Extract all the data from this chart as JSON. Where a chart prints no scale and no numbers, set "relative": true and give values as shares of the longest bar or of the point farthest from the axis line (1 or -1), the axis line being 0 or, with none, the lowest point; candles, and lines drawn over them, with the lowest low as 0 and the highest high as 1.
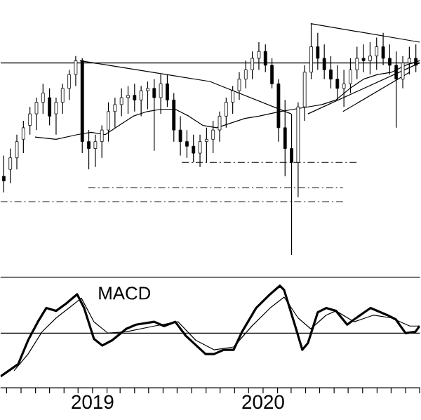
{
  "chart_data": [
    {
      "type": "candlestick",
      "relative": true,
      "color": "#000000",
      "xlim": [
        "2018-06-18",
        "2020-12-02"
      ],
      "tick_labels": false,
      "x": [
        "2018-06-25",
        "2018-07-09",
        "2018-07-23",
        "2018-08-06",
        "2018-08-20",
        "2018-09-03",
        "2018-09-17",
        "2018-10-01",
        "2018-10-15",
        "2018-10-29",
        "2018-11-12",
        "2018-11-26",
        "2018-12-10",
        "2018-12-24",
        "2019-01-07",
        "2019-01-21",
        "2019-02-04",
        "2019-02-18",
        "2019-03-04",
        "2019-03-18",
        "2019-04-01",
        "2019-04-15",
        "2019-04-29",
        "2019-05-13",
        "2019-05-27",
        "2019-06-10",
        "2019-06-24",
        "2019-07-08",
        "2019-07-22",
        "2019-08-05",
        "2019-08-19",
        "2019-09-02",
        "2019-09-16",
        "2019-09-30",
        "2019-10-14",
        "2019-10-28",
        "2019-11-11",
        "2019-11-25",
        "2019-12-09",
        "2019-12-23",
        "2020-01-06",
        "2020-01-20",
        "2020-02-03",
        "2020-02-17",
        "2020-03-02",
        "2020-03-16",
        "2020-03-30",
        "2020-04-13",
        "2020-04-27",
        "2020-05-11",
        "2020-05-25",
        "2020-06-08",
        "2020-06-22",
        "2020-07-06",
        "2020-07-20",
        "2020-08-03",
        "2020-08-17",
        "2020-08-31",
        "2020-09-14",
        "2020-09-28",
        "2020-10-12",
        "2020-10-26",
        "2020-11-09",
        "2020-11-23"
      ],
      "ohlc": [
        [
          0.34,
          0.43,
          0.27,
          0.32
        ],
        [
          0.37,
          0.46,
          0.31,
          0.42
        ],
        [
          0.42,
          0.52,
          0.37,
          0.49
        ],
        [
          0.5,
          0.58,
          0.44,
          0.55
        ],
        [
          0.56,
          0.64,
          0.52,
          0.61
        ],
        [
          0.61,
          0.68,
          0.54,
          0.66
        ],
        [
          0.66,
          0.74,
          0.61,
          0.7
        ],
        [
          0.68,
          0.72,
          0.56,
          0.6
        ],
        [
          0.61,
          0.68,
          0.52,
          0.66
        ],
        [
          0.66,
          0.74,
          0.61,
          0.72
        ],
        [
          0.72,
          0.8,
          0.67,
          0.78
        ],
        [
          0.78,
          0.86,
          0.73,
          0.84
        ],
        [
          0.84,
          0.85,
          0.44,
          0.49
        ],
        [
          0.49,
          0.54,
          0.37,
          0.46
        ],
        [
          0.46,
          0.52,
          0.38,
          0.49
        ],
        [
          0.49,
          0.56,
          0.42,
          0.54
        ],
        [
          0.54,
          0.66,
          0.49,
          0.62
        ],
        [
          0.62,
          0.68,
          0.55,
          0.65
        ],
        [
          0.65,
          0.72,
          0.6,
          0.68
        ],
        [
          0.68,
          0.73,
          0.61,
          0.69
        ],
        [
          0.69,
          0.74,
          0.62,
          0.67
        ],
        [
          0.67,
          0.73,
          0.6,
          0.71
        ],
        [
          0.71,
          0.75,
          0.63,
          0.72
        ],
        [
          0.72,
          0.76,
          0.45,
          0.68
        ],
        [
          0.68,
          0.78,
          0.61,
          0.74
        ],
        [
          0.74,
          0.78,
          0.64,
          0.67
        ],
        [
          0.67,
          0.7,
          0.49,
          0.54
        ],
        [
          0.54,
          0.6,
          0.43,
          0.49
        ],
        [
          0.49,
          0.54,
          0.42,
          0.47
        ],
        [
          0.47,
          0.52,
          0.4,
          0.44
        ],
        [
          0.44,
          0.52,
          0.38,
          0.49
        ],
        [
          0.49,
          0.55,
          0.4,
          0.5
        ],
        [
          0.5,
          0.58,
          0.44,
          0.54
        ],
        [
          0.54,
          0.62,
          0.49,
          0.6
        ],
        [
          0.6,
          0.68,
          0.55,
          0.66
        ],
        [
          0.66,
          0.73,
          0.61,
          0.71
        ],
        [
          0.71,
          0.79,
          0.67,
          0.76
        ],
        [
          0.76,
          0.84,
          0.72,
          0.8
        ],
        [
          0.8,
          0.88,
          0.76,
          0.85
        ],
        [
          0.85,
          0.92,
          0.8,
          0.88
        ],
        [
          0.88,
          0.91,
          0.79,
          0.82
        ],
        [
          0.82,
          0.85,
          0.72,
          0.74
        ],
        [
          0.74,
          0.76,
          0.49,
          0.55
        ],
        [
          0.55,
          0.67,
          0.34,
          0.46
        ],
        [
          0.46,
          0.61,
          0,
          0.4
        ],
        [
          0.4,
          0.66,
          0.25,
          0.64
        ],
        [
          0.64,
          0.82,
          0.58,
          0.79
        ],
        [
          0.79,
          1,
          0.76,
          0.9
        ],
        [
          0.9,
          0.96,
          0.8,
          0.85
        ],
        [
          0.85,
          0.91,
          0.76,
          0.8
        ],
        [
          0.8,
          0.86,
          0.72,
          0.76
        ],
        [
          0.76,
          0.82,
          0.67,
          0.72
        ],
        [
          0.72,
          0.8,
          0.64,
          0.74
        ],
        [
          0.74,
          0.85,
          0.7,
          0.8
        ],
        [
          0.8,
          0.9,
          0.76,
          0.85
        ],
        [
          0.85,
          0.91,
          0.79,
          0.84
        ],
        [
          0.84,
          0.92,
          0.78,
          0.86
        ],
        [
          0.86,
          0.94,
          0.8,
          0.9
        ],
        [
          0.9,
          0.96,
          0.82,
          0.85
        ],
        [
          0.85,
          0.91,
          0.78,
          0.82
        ],
        [
          0.82,
          0.88,
          0.55,
          0.76
        ],
        [
          0.76,
          0.86,
          0.72,
          0.83
        ],
        [
          0.83,
          0.9,
          0.78,
          0.85
        ],
        [
          0.85,
          0.91,
          0.79,
          0.82
        ]
      ],
      "series": [
        {
          "type": "line",
          "color": "#000000",
          "x": [
            "2018-08-31",
            "2018-10-15",
            "2018-11-29",
            "2018-12-29",
            "2019-01-28",
            "2019-02-27",
            "2019-03-29",
            "2019-04-28",
            "2019-05-28",
            "2019-06-27",
            "2019-07-26",
            "2019-08-25",
            "2019-09-24",
            "2019-10-24",
            "2019-11-23",
            "2019-12-23",
            "2020-02-06",
            "2020-03-07",
            "2020-04-06",
            "2020-05-06",
            "2020-06-05",
            "2020-07-05",
            "2020-08-03",
            "2020-09-02",
            "2020-10-02",
            "2020-11-01",
            "2020-12-01"
          ],
          "values": [
            0.51,
            0.5,
            0.52,
            0.53,
            0.52,
            0.56,
            0.6,
            0.62,
            0.63,
            0.63,
            0.6,
            0.56,
            0.55,
            0.57,
            0.59,
            0.6,
            0.62,
            0.63,
            0.64,
            0.65,
            0.67,
            0.72,
            0.76,
            0.78,
            0.79,
            0.82,
            0.84
          ]
        },
        {
          "type": "line",
          "color": "#000000",
          "x": [
            "2018-12-05",
            "2019-09-09",
            "2020-03-01"
          ],
          "values": [
            0.84,
            0.75,
            0.61
          ]
        },
        {
          "type": "line",
          "color": "#000000",
          "x": [
            "2020-04-06",
            "2020-12-01"
          ],
          "values": [
            0.61,
            0.83
          ]
        },
        {
          "type": "line",
          "color": "#000000",
          "x": [
            "2020-06-20",
            "2020-11-10"
          ],
          "values": [
            0.62,
            0.79
          ]
        },
        {
          "type": "line",
          "color": "#000000",
          "x": [
            "2020-04-12",
            "2020-12-01"
          ],
          "values": [
            1.0,
            0.92
          ]
        },
        {
          "type": "line",
          "color": "#000000",
          "line_style": "dashed",
          "x": [
            "2019-07-11",
            "2020-07-19"
          ],
          "values": [
            0.4,
            0.4
          ]
        },
        {
          "type": "line",
          "color": "#000000",
          "line_style": "dashed",
          "x": [
            "2018-12-23",
            "2020-06-20"
          ],
          "values": [
            0.29,
            0.29
          ]
        },
        {
          "type": "line",
          "color": "#000000",
          "line_style": "dashed",
          "x": [
            "2018-06-18",
            "2020-06-20"
          ],
          "values": [
            0.23,
            0.23
          ]
        }
      ],
      "ref_lines": [
        {
          "axis": "y",
          "value": 0.83,
          "color": "#000000"
        }
      ]
    },
    {
      "type": "line",
      "relative": true,
      "xlim": [
        "2018-06-18",
        "2020-12-02"
      ],
      "tick_labels": "x",
      "xticks": [
        {
          "value": "2018-07-01",
          "label": null
        },
        {
          "value": "2018-08-01",
          "label": null
        },
        {
          "value": "2018-09-01",
          "label": null
        },
        {
          "value": "2018-10-01",
          "label": null
        },
        {
          "value": "2018-11-01",
          "label": null
        },
        {
          "value": "2018-12-01",
          "label": null
        },
        {
          "value": "2019-01-01",
          "label": "2019"
        },
        {
          "value": "2019-02-01",
          "label": null
        },
        {
          "value": "2019-03-01",
          "label": null
        },
        {
          "value": "2019-04-01",
          "label": null
        },
        {
          "value": "2019-05-01",
          "label": null
        },
        {
          "value": "2019-06-01",
          "label": null
        },
        {
          "value": "2019-07-01",
          "label": null
        },
        {
          "value": "2019-08-01",
          "label": null
        },
        {
          "value": "2019-09-01",
          "label": null
        },
        {
          "value": "2019-10-01",
          "label": null
        },
        {
          "value": "2019-11-01",
          "label": null
        },
        {
          "value": "2019-12-01",
          "label": null
        },
        {
          "value": "2020-01-01",
          "label": "2020"
        },
        {
          "value": "2020-02-01",
          "label": null
        },
        {
          "value": "2020-03-01",
          "label": null
        },
        {
          "value": "2020-04-01",
          "label": null
        },
        {
          "value": "2020-05-01",
          "label": null
        },
        {
          "value": "2020-06-01",
          "label": null
        },
        {
          "value": "2020-07-01",
          "label": null
        },
        {
          "value": "2020-08-01",
          "label": null
        },
        {
          "value": "2020-09-01",
          "label": null
        },
        {
          "value": "2020-10-01",
          "label": null
        },
        {
          "value": "2020-11-01",
          "label": null
        },
        {
          "value": "2020-12-01",
          "label": null
        }
      ],
      "series": [
        {
          "name": "MACD",
          "color": "#000000",
          "x": [
            "2018-06-18",
            "2018-06-27",
            "2018-07-26",
            "2018-08-16",
            "2018-09-06",
            "2018-09-24",
            "2018-10-15",
            "2018-11-05",
            "2018-11-29",
            "2018-12-14",
            "2019-01-04",
            "2019-01-22",
            "2019-02-12",
            "2019-03-14",
            "2019-04-04",
            "2019-05-13",
            "2019-06-03",
            "2019-06-27",
            "2019-07-20",
            "2019-08-31",
            "2019-09-18",
            "2019-10-09",
            "2019-10-30",
            "2019-11-17",
            "2019-12-17",
            "2020-01-16",
            "2020-02-06",
            "2020-02-15",
            "2020-03-07",
            "2020-03-25",
            "2020-04-06",
            "2020-04-27",
            "2020-05-15",
            "2020-06-05",
            "2020-06-29",
            "2020-07-14",
            "2020-08-18",
            "2020-09-23",
            "2020-10-11",
            "2020-11-01",
            "2020-11-22",
            "2020-12-01"
          ],
          "values": [
            -0.91,
            -0.85,
            -0.65,
            -0.15,
            0.24,
            0.53,
            0.47,
            0.62,
            0.82,
            0.53,
            -0.12,
            -0.26,
            -0.15,
            0.09,
            0.18,
            0.24,
            0.15,
            0.24,
            -0.06,
            -0.44,
            -0.44,
            -0.35,
            -0.35,
            0.03,
            0.53,
            0.82,
            1.0,
            0.91,
            0.24,
            -0.35,
            -0.21,
            0.44,
            0.53,
            0.47,
            0.18,
            0.29,
            0.53,
            0.38,
            0.29,
            0.0,
            0.03,
            0.15
          ]
        },
        {
          "color": "#000000",
          "x": [
            "2018-07-17",
            "2018-08-16",
            "2018-09-15",
            "2018-10-15",
            "2018-11-23",
            "2018-12-08",
            "2019-01-04",
            "2019-02-03",
            "2019-03-14",
            "2019-05-13",
            "2019-07-03",
            "2019-08-10",
            "2019-09-18",
            "2019-10-30",
            "2019-12-08",
            "2020-01-16",
            "2020-02-15",
            "2020-03-16",
            "2020-04-12",
            "2020-05-15",
            "2020-06-05",
            "2020-07-14",
            "2020-08-24",
            "2020-10-02",
            "2020-11-10",
            "2020-12-01"
          ],
          "values": [
            -0.79,
            -0.44,
            0.03,
            0.32,
            0.62,
            0.74,
            0.24,
            0.0,
            0.03,
            0.15,
            0.24,
            -0.15,
            -0.35,
            -0.29,
            0.15,
            0.53,
            0.76,
            0.32,
            0.09,
            0.38,
            0.47,
            0.24,
            0.38,
            0.32,
            0.15,
            0.15
          ]
        }
      ],
      "ref_lines": [
        {
          "axis": "y",
          "value": 0,
          "color": "#000000"
        }
      ]
    }
  ]
}
